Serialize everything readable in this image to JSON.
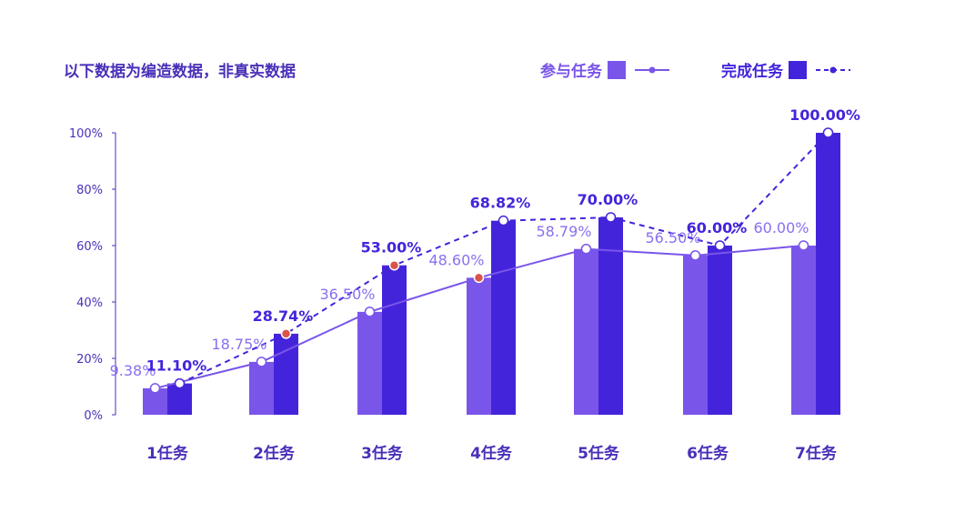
{
  "title": "以下数据为编造数据，非真实数据",
  "legend": {
    "participate": "参与任务",
    "complete": "完成任务"
  },
  "colors": {
    "participate": "#7a55ea",
    "complete": "#4424db",
    "participate_line": "#7a55ea",
    "complete_line": "#4424db",
    "highlight_dot": "#d9544b"
  },
  "chart_data": {
    "type": "bar",
    "categories": [
      "1任务",
      "2任务",
      "3任务",
      "4任务",
      "5任务",
      "6任务",
      "7任务"
    ],
    "yticks": [
      "0%",
      "20%",
      "40%",
      "60%",
      "80%",
      "100%"
    ],
    "ylim": [
      0,
      100
    ],
    "series": [
      {
        "name": "参与任务",
        "values": [
          9.38,
          18.75,
          36.5,
          48.6,
          58.79,
          56.5,
          60.0
        ],
        "labels": [
          "9.38%",
          "18.75%",
          "36.50%",
          "48.60%",
          "58.79%",
          "56.50%",
          "60.00%"
        ]
      },
      {
        "name": "完成任务",
        "values": [
          11.1,
          28.74,
          53.0,
          68.82,
          70.0,
          60.0,
          100.0
        ],
        "labels": [
          "11.10%",
          "28.74%",
          "53.00%",
          "68.82%",
          "70.00%",
          "60.00%",
          "100.00%"
        ]
      }
    ],
    "highlight_points": {
      "参与任务": [
        3
      ],
      "完成任务": [
        1,
        2
      ]
    },
    "line_overlay": {
      "参与任务": "solid",
      "完成任务": "dashed"
    },
    "legend_position": "top-right",
    "grid": false
  }
}
